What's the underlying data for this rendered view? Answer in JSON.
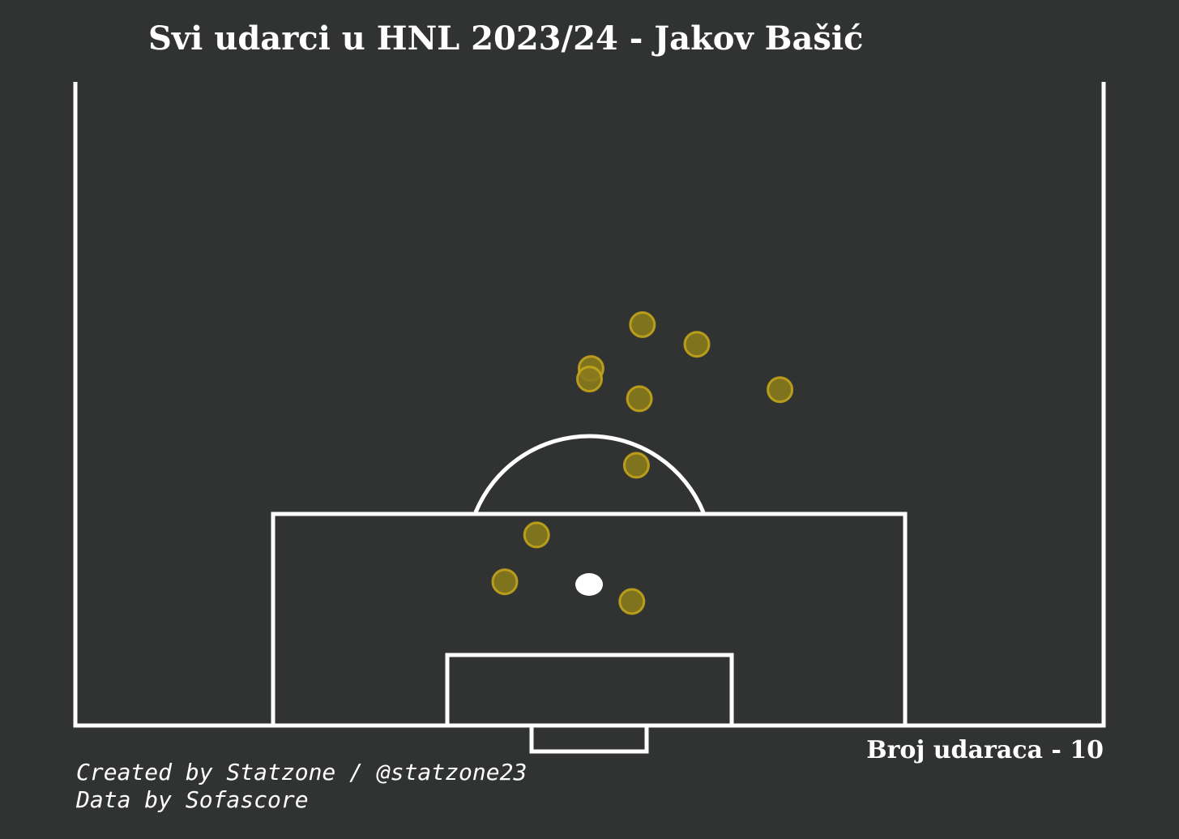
{
  "title": "Svi udarci u HNL 2023/24 - Jakov Bašić",
  "shot_count_label": "Broj udaraca - 10",
  "credits": {
    "line1": "Created by Statzone / @statzone23",
    "line2": "Data by Sofascore"
  },
  "colors": {
    "background": "#313332",
    "lines": "#ffffff",
    "shot_fill": "#8a7a1c",
    "shot_edge": "#c9a91a"
  },
  "chart_data": {
    "type": "scatter",
    "title": "Svi udarci u HNL 2023/24 - Jakov Bašić",
    "xlabel": "",
    "ylabel": "",
    "pitch": "half-vertical",
    "xlim": [
      0,
      68
    ],
    "ylim": [
      0,
      42.5
    ],
    "points": [
      {
        "x": 37.5,
        "y": 26.5
      },
      {
        "x": 41.1,
        "y": 25.2
      },
      {
        "x": 34.1,
        "y": 23.6
      },
      {
        "x": 34.0,
        "y": 22.9
      },
      {
        "x": 37.3,
        "y": 21.6
      },
      {
        "x": 46.6,
        "y": 22.2
      },
      {
        "x": 37.1,
        "y": 17.2
      },
      {
        "x": 30.5,
        "y": 12.6
      },
      {
        "x": 28.4,
        "y": 9.5
      },
      {
        "x": 36.8,
        "y": 8.2
      }
    ]
  }
}
